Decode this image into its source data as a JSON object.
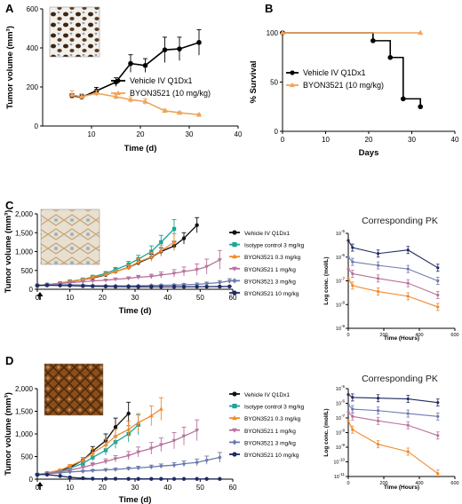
{
  "chart_data": [
    {
      "id": "A",
      "type": "line",
      "panel_label": "A",
      "xlabel": "Time (d)",
      "ylabel": "Tumor volume (mm³)",
      "xlim": [
        0,
        40
      ],
      "ylim": [
        0,
        600
      ],
      "xticks": [
        "10",
        "20",
        "30",
        "40"
      ],
      "yticks": [
        "0",
        "200",
        "400",
        "600"
      ],
      "inset": "IHC image (tumor section)",
      "series": [
        {
          "name": "Vehicle IV Q1Dx1",
          "color": "#000000",
          "marker": "circle",
          "x": [
            6,
            8,
            11,
            15,
            18,
            21,
            25,
            28,
            32
          ],
          "y": [
            155,
            148,
            180,
            225,
            320,
            310,
            390,
            395,
            428
          ],
          "err": [
            10,
            12,
            18,
            22,
            45,
            35,
            65,
            60,
            65
          ]
        },
        {
          "name": "BYON3521 (10 mg/kg)",
          "color": "#f0a35a",
          "marker": "triangle",
          "x": [
            6,
            8,
            11,
            15,
            18,
            21,
            25,
            28,
            32
          ],
          "y": [
            160,
            150,
            168,
            150,
            135,
            125,
            78,
            68,
            58
          ],
          "err": [
            20,
            15,
            15,
            12,
            15,
            15,
            8,
            5,
            5
          ]
        }
      ]
    },
    {
      "id": "B",
      "type": "line",
      "panel_label": "B",
      "xlabel": "Days",
      "ylabel": "% Survival",
      "xlim": [
        0,
        40
      ],
      "ylim": [
        0,
        100
      ],
      "xticks": [
        "0",
        "10",
        "20",
        "30",
        "40"
      ],
      "yticks": [
        "0",
        "50",
        "100"
      ],
      "series": [
        {
          "name": "Vehicle IV Q1Dx1",
          "color": "#000000",
          "marker": "circle",
          "x": [
            0,
            21,
            25,
            28,
            32
          ],
          "y": [
            100,
            92,
            75,
            33,
            25
          ]
        },
        {
          "name": "BYON3521 (10 mg/kg)",
          "color": "#f0a35a",
          "marker": "triangle",
          "x": [
            0,
            32
          ],
          "y": [
            100,
            100
          ]
        }
      ]
    },
    {
      "id": "C",
      "type": "line",
      "panel_label": "C",
      "xlabel": "Time (d)",
      "ylabel": "Tumor volume (mm³)",
      "xlim": [
        0,
        60
      ],
      "ylim": [
        0,
        2000
      ],
      "xticks": [
        "0",
        "10",
        "20",
        "30",
        "40",
        "50",
        "60"
      ],
      "yticks": [
        "0",
        "500",
        "1,000",
        "1,500",
        "2,000"
      ],
      "inset": "IHC image (tumor section)",
      "series": [
        {
          "name": "Vehicle IV Q1Dx1",
          "color": "#111111",
          "marker": "circle",
          "x": [
            0,
            3,
            7,
            10,
            14,
            17,
            21,
            24,
            28,
            31,
            35,
            38,
            42,
            45,
            49
          ],
          "y": [
            100,
            125,
            155,
            200,
            255,
            300,
            380,
            470,
            580,
            700,
            850,
            1000,
            1150,
            1350,
            1700
          ],
          "err": [
            10,
            12,
            15,
            20,
            25,
            30,
            40,
            50,
            60,
            70,
            80,
            100,
            120,
            150,
            200
          ]
        },
        {
          "name": "Isotype control 3 mg/kg",
          "color": "#1aa59a",
          "marker": "square",
          "x": [
            0,
            3,
            7,
            10,
            14,
            17,
            21,
            24,
            28,
            31,
            35,
            38,
            42
          ],
          "y": [
            100,
            120,
            160,
            210,
            260,
            330,
            420,
            520,
            660,
            800,
            1000,
            1250,
            1600
          ],
          "err": [
            10,
            12,
            18,
            22,
            30,
            40,
            50,
            60,
            80,
            100,
            150,
            180,
            250
          ]
        },
        {
          "name": "BYON3521 0.3 mg/kg",
          "color": "#f08a2c",
          "marker": "triangle",
          "x": [
            0,
            3,
            7,
            10,
            14,
            17,
            21,
            24,
            28,
            31,
            35,
            38,
            42
          ],
          "y": [
            100,
            125,
            160,
            205,
            255,
            315,
            390,
            470,
            580,
            720,
            860,
            1020,
            1250
          ],
          "err": [
            10,
            12,
            18,
            22,
            28,
            35,
            45,
            55,
            70,
            90,
            120,
            150,
            220
          ]
        },
        {
          "name": "BYON3521 1 mg/kg",
          "color": "#b8729e",
          "marker": "triangleDown",
          "x": [
            0,
            3,
            7,
            10,
            14,
            17,
            21,
            24,
            28,
            31,
            35,
            38,
            42,
            45,
            49,
            52,
            56
          ],
          "y": [
            100,
            120,
            150,
            175,
            200,
            220,
            240,
            265,
            290,
            320,
            340,
            380,
            420,
            470,
            520,
            600,
            780
          ],
          "err": [
            10,
            12,
            15,
            18,
            20,
            25,
            30,
            35,
            40,
            50,
            60,
            80,
            100,
            120,
            150,
            200,
            250
          ]
        },
        {
          "name": "BYON3521 3 mg/kg",
          "color": "#6c7bad",
          "marker": "diamond",
          "x": [
            0,
            3,
            7,
            10,
            14,
            17,
            21,
            24,
            28,
            31,
            35,
            38,
            42,
            45,
            49,
            52,
            56,
            59
          ],
          "y": [
            100,
            110,
            115,
            120,
            110,
            100,
            95,
            90,
            90,
            95,
            100,
            105,
            110,
            120,
            130,
            150,
            180,
            220
          ],
          "err": [
            10,
            10,
            12,
            12,
            12,
            12,
            12,
            15,
            15,
            15,
            20,
            20,
            25,
            30,
            35,
            40,
            50,
            60
          ]
        },
        {
          "name": "BYON3521 10 mg/kg",
          "color": "#1f2a63",
          "marker": "circle",
          "x": [
            0,
            3,
            7,
            10,
            14,
            17,
            21,
            24,
            28,
            31,
            35,
            38,
            42,
            45,
            49,
            52,
            56,
            59
          ],
          "y": [
            100,
            105,
            100,
            95,
            85,
            80,
            75,
            70,
            68,
            66,
            65,
            65,
            65,
            66,
            68,
            70,
            72,
            75
          ],
          "err": [
            8,
            8,
            8,
            8,
            8,
            8,
            8,
            8,
            8,
            8,
            8,
            8,
            8,
            8,
            8,
            8,
            8,
            8
          ]
        }
      ]
    },
    {
      "id": "C-PK",
      "type": "line",
      "title": "Corresponding PK",
      "xlabel": "Time (Hours)",
      "ylabel": "Log conc. (mol/L)",
      "xlim": [
        0,
        600
      ],
      "ylim": [
        -9,
        -5
      ],
      "log_y": true,
      "xticks": [
        "0",
        "200",
        "400",
        "600"
      ],
      "yticks": [
        [
          "10",
          "-5"
        ],
        [
          "10",
          "-6"
        ],
        [
          "10",
          "-7"
        ],
        [
          "10",
          "-8"
        ],
        [
          "10",
          "-9"
        ]
      ],
      "series": [
        {
          "name": "BYON3521 10 mg/kg",
          "color": "#1f2a63",
          "x": [
            0,
            24,
            168,
            336,
            504
          ],
          "y": [
            -5.3,
            -5.6,
            -5.85,
            -5.7,
            -6.45
          ]
        },
        {
          "name": "BYON3521 3 mg/kg",
          "color": "#6c7bad",
          "x": [
            0,
            24,
            168,
            336,
            504
          ],
          "y": [
            -6.0,
            -6.2,
            -6.35,
            -6.5,
            -7.0
          ]
        },
        {
          "name": "BYON3521 1 mg/kg",
          "color": "#b8729e",
          "x": [
            0,
            24,
            168,
            336,
            504
          ],
          "y": [
            -6.5,
            -6.7,
            -6.9,
            -7.1,
            -7.6
          ]
        },
        {
          "name": "BYON3521 0.3 mg/kg",
          "color": "#f08a2c",
          "x": [
            0,
            24,
            168,
            336,
            504
          ],
          "y": [
            -6.9,
            -7.2,
            -7.45,
            -7.65,
            -8.1
          ]
        }
      ]
    },
    {
      "id": "D",
      "type": "line",
      "panel_label": "D",
      "xlabel": "Time (d)",
      "ylabel": "Tumor volume (mm³)",
      "xlim": [
        0,
        60
      ],
      "ylim": [
        0,
        2000
      ],
      "xticks": [
        "0",
        "10",
        "20",
        "30",
        "40",
        "50",
        "60"
      ],
      "yticks": [
        "0",
        "500",
        "1,000",
        "1,500",
        "2,000"
      ],
      "inset": "IHC image (tumor section)",
      "series": [
        {
          "name": "Vehicle IV Q1Dx1",
          "color": "#111111",
          "marker": "circle",
          "x": [
            0,
            3,
            7,
            10,
            14,
            17,
            21,
            24,
            28
          ],
          "y": [
            100,
            130,
            180,
            260,
            420,
            620,
            850,
            1150,
            1450
          ],
          "err": [
            10,
            15,
            20,
            30,
            60,
            100,
            150,
            200,
            250
          ]
        },
        {
          "name": "Isotype control 3 mg/kg",
          "color": "#1aa59a",
          "marker": "square",
          "x": [
            0,
            3,
            7,
            10,
            14,
            17,
            21,
            24,
            28,
            31
          ],
          "y": [
            100,
            130,
            170,
            240,
            350,
            480,
            640,
            820,
            1000,
            1200
          ],
          "err": [
            10,
            15,
            20,
            30,
            50,
            80,
            110,
            140,
            180,
            220
          ]
        },
        {
          "name": "BYON3521 0.3 mg/kg",
          "color": "#f08a2c",
          "marker": "triangle",
          "x": [
            0,
            3,
            7,
            10,
            14,
            17,
            21,
            24,
            28,
            31,
            35,
            38
          ],
          "y": [
            100,
            140,
            200,
            290,
            420,
            580,
            760,
            950,
            1100,
            1250,
            1400,
            1550
          ],
          "err": [
            10,
            15,
            20,
            35,
            60,
            90,
            120,
            150,
            180,
            200,
            220,
            250
          ]
        },
        {
          "name": "BYON3521 1 mg/kg",
          "color": "#b8729e",
          "marker": "triangleDown",
          "x": [
            0,
            3,
            7,
            10,
            14,
            17,
            21,
            24,
            28,
            31,
            35,
            38,
            42,
            45,
            49
          ],
          "y": [
            100,
            125,
            160,
            200,
            260,
            320,
            390,
            450,
            520,
            600,
            680,
            760,
            850,
            950,
            1080
          ],
          "err": [
            10,
            15,
            20,
            25,
            35,
            45,
            60,
            70,
            90,
            110,
            130,
            150,
            180,
            200,
            230
          ]
        },
        {
          "name": "BYON3521 3 mg/kg",
          "color": "#6c7bad",
          "marker": "diamond",
          "x": [
            0,
            3,
            7,
            10,
            14,
            17,
            21,
            24,
            28,
            31,
            35,
            38,
            42,
            45,
            49,
            52,
            56
          ],
          "y": [
            100,
            120,
            140,
            160,
            175,
            190,
            205,
            215,
            235,
            250,
            270,
            290,
            310,
            340,
            370,
            420,
            480
          ],
          "err": [
            10,
            12,
            15,
            18,
            20,
            22,
            25,
            28,
            30,
            35,
            40,
            45,
            55,
            65,
            75,
            90,
            110
          ]
        },
        {
          "name": "BYON3521 10 mg/kg",
          "color": "#1f2a63",
          "marker": "circle",
          "x": [
            0,
            3,
            7,
            10,
            14,
            17,
            21,
            24,
            28,
            31,
            35,
            38,
            42,
            45,
            49,
            52,
            56
          ],
          "y": [
            100,
            100,
            70,
            40,
            20,
            10,
            8,
            8,
            6,
            6,
            6,
            6,
            5,
            5,
            5,
            5,
            5
          ],
          "err": [
            8,
            8,
            8,
            6,
            5,
            4,
            3,
            3,
            3,
            3,
            3,
            3,
            3,
            3,
            3,
            3,
            3
          ]
        }
      ]
    },
    {
      "id": "D-PK",
      "type": "line",
      "title": "Corresponding PK",
      "xlabel": "Time (Hours)",
      "ylabel": "Log conc. (mol/L)",
      "xlim": [
        0,
        600
      ],
      "ylim": [
        -11,
        -5
      ],
      "log_y": true,
      "xticks": [
        "0",
        "200",
        "400",
        "600"
      ],
      "yticks": [
        [
          "10",
          "-5"
        ],
        [
          "10",
          "-6"
        ],
        [
          "10",
          "-7"
        ],
        [
          "10",
          "-8"
        ],
        [
          "10",
          "-9"
        ],
        [
          "10",
          "-10"
        ],
        [
          "10",
          "-11"
        ]
      ],
      "series": [
        {
          "name": "BYON3521 10 mg/kg",
          "color": "#1f2a63",
          "x": [
            0,
            24,
            168,
            336,
            504
          ],
          "y": [
            -5.4,
            -5.6,
            -5.65,
            -5.7,
            -5.95
          ]
        },
        {
          "name": "BYON3521 3 mg/kg",
          "color": "#6c7bad",
          "x": [
            0,
            24,
            168,
            336,
            504
          ],
          "y": [
            -6.1,
            -6.4,
            -6.5,
            -6.7,
            -6.9
          ]
        },
        {
          "name": "BYON3521 1 mg/kg",
          "color": "#b8729e",
          "x": [
            0,
            24,
            168,
            336,
            504
          ],
          "y": [
            -6.6,
            -6.9,
            -7.2,
            -7.5,
            -8.2
          ]
        },
        {
          "name": "BYON3521 0.3 mg/kg",
          "color": "#f08a2c",
          "x": [
            0,
            24,
            168,
            336,
            504
          ],
          "y": [
            -7.2,
            -7.8,
            -8.8,
            -9.3,
            -10.8
          ]
        }
      ]
    }
  ]
}
